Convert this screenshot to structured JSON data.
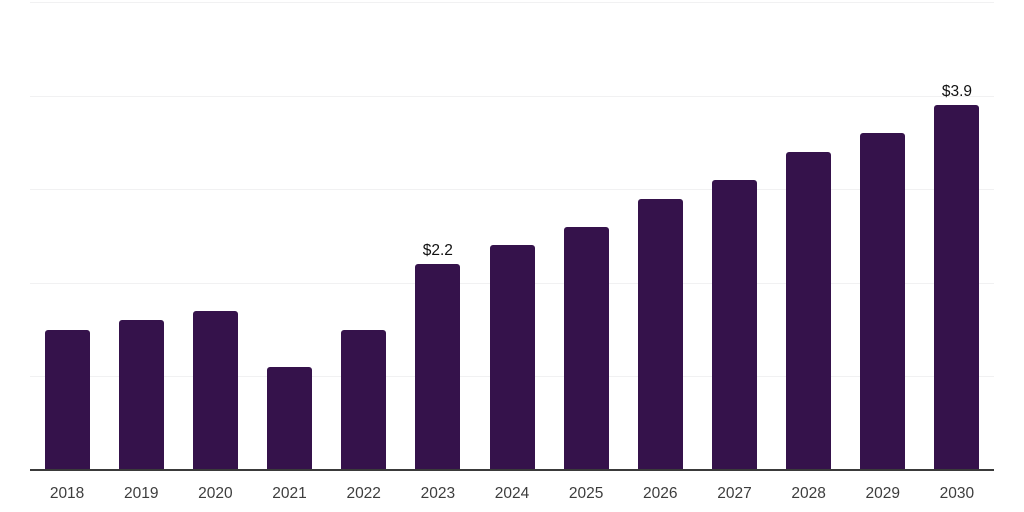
{
  "chart_data": {
    "type": "bar",
    "title": "",
    "xlabel": "",
    "ylabel": "",
    "categories": [
      "2018",
      "2019",
      "2020",
      "2021",
      "2022",
      "2023",
      "2024",
      "2025",
      "2026",
      "2027",
      "2028",
      "2029",
      "2030"
    ],
    "values": [
      1.5,
      1.6,
      1.7,
      1.1,
      1.5,
      2.2,
      2.4,
      2.6,
      2.9,
      3.1,
      3.4,
      3.6,
      3.9
    ],
    "point_labels": [
      "",
      "",
      "",
      "",
      "",
      "$2.2",
      "",
      "",
      "",
      "",
      "",
      "",
      "$3.9"
    ],
    "ylim": [
      0,
      5
    ],
    "gridline_values": [
      1,
      2,
      3,
      4,
      5
    ],
    "grid": "horizontal",
    "legend_position": "none",
    "y_tick_labels_visible": false,
    "colors": {
      "bar": "#35124B",
      "axis": "#3A3A3A",
      "gridline": "#F1F1F2",
      "x_label_text": "#3D3D3D",
      "value_label_text": "#111111",
      "background": "#FFFFFF"
    }
  }
}
